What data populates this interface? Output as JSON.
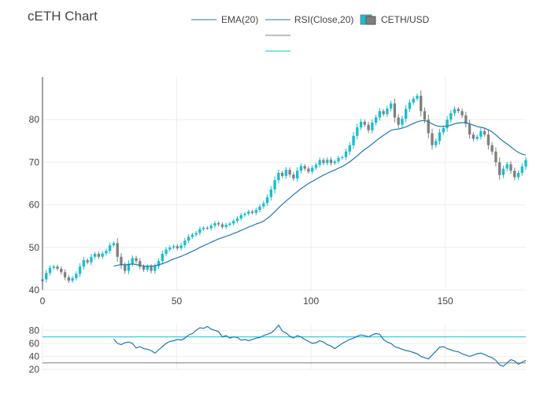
{
  "chart_data": {
    "title": "cETH Chart",
    "type": "candlestick",
    "legend_placement": "top-center",
    "colors": {
      "increasing": "#17becf",
      "decreasing": "#7f7f7f",
      "ema": "#1f77b4",
      "rsi": "#1f77b4",
      "rsi_upper": "#17becf",
      "rsi_lower": "#7f7f7f",
      "grid": "#eeeeee"
    },
    "legend": [
      "EMA(20)",
      "RSI(Close,20)",
      "CETH/USD"
    ],
    "price_axis": {
      "xlim": [
        0,
        180
      ],
      "ylim": [
        40,
        90
      ],
      "xticks": [
        0,
        50,
        100,
        150
      ],
      "yticks": [
        40,
        50,
        60,
        70,
        80
      ]
    },
    "rsi_axis": {
      "ylim": [
        20,
        90
      ],
      "yticks": [
        20,
        40,
        60,
        80
      ],
      "upper_band": 70,
      "lower_band": 30
    },
    "close": [
      42.5,
      44.0,
      45.2,
      45.5,
      45.0,
      44.2,
      43.0,
      42.2,
      42.8,
      43.8,
      45.5,
      47.0,
      46.5,
      47.8,
      48.5,
      47.8,
      48.6,
      49.2,
      50.5,
      51.0,
      47.8,
      45.8,
      44.5,
      46.2,
      47.5,
      46.8,
      45.5,
      44.8,
      45.5,
      44.5,
      45.6,
      46.8,
      48.5,
      49.5,
      50.0,
      50.3,
      49.8,
      50.5,
      51.6,
      52.5,
      53.0,
      53.4,
      54.3,
      54.6,
      54.5,
      55.1,
      55.7,
      55.4,
      54.8,
      55.3,
      55.6,
      56.2,
      56.8,
      57.6,
      57.9,
      58.4,
      58.1,
      58.8,
      59.6,
      60.4,
      61.8,
      63.6,
      65.8,
      67.5,
      66.8,
      68.2,
      67.1,
      66.2,
      68.0,
      69.1,
      68.5,
      67.8,
      68.7,
      69.4,
      70.5,
      69.8,
      70.6,
      69.8,
      70.2,
      71.0,
      71.2,
      72.5,
      74.0,
      76.2,
      78.2,
      79.5,
      78.8,
      77.5,
      79.3,
      80.5,
      82.0,
      81.3,
      82.6,
      83.8,
      80.5,
      78.8,
      80.2,
      82.5,
      84.0,
      84.9,
      85.6,
      82.0,
      80.0,
      76.8,
      74.0,
      75.0,
      77.0,
      78.0,
      80.0,
      81.5,
      82.5,
      82.0,
      81.0,
      79.0,
      76.5,
      75.5,
      76.0,
      77.3,
      76.5,
      74.0,
      72.5,
      70.0,
      67.0,
      68.5,
      69.5,
      68.0,
      66.5,
      67.5,
      69.0,
      70.5
    ],
    "ema": [
      null,
      null,
      null,
      null,
      null,
      null,
      null,
      null,
      null,
      null,
      null,
      null,
      null,
      null,
      null,
      null,
      null,
      null,
      null,
      45.6,
      45.8,
      46.0,
      45.9,
      46.0,
      46.1,
      46.0,
      45.8,
      45.6,
      45.6,
      45.6,
      45.7,
      45.9,
      46.2,
      46.5,
      46.9,
      47.3,
      47.6,
      47.9,
      48.3,
      48.7,
      49.1,
      49.5,
      50.0,
      50.4,
      50.8,
      51.2,
      51.6,
      52.0,
      52.3,
      52.6,
      52.9,
      53.3,
      53.6,
      54.0,
      54.4,
      54.8,
      55.1,
      55.5,
      55.8,
      56.2,
      56.8,
      57.5,
      58.4,
      59.3,
      60.1,
      60.9,
      61.6,
      62.4,
      63.1,
      63.8,
      64.4,
      65.0,
      65.5,
      66.0,
      66.5,
      67.0,
      67.4,
      67.8,
      68.2,
      68.6,
      69.0,
      69.5,
      70.1,
      70.8,
      71.5,
      72.3,
      73.0,
      73.6,
      74.3,
      75.0,
      75.7,
      76.3,
      76.9,
      77.5,
      77.7,
      77.8,
      78.0,
      78.3,
      78.7,
      79.1,
      79.5,
      79.7,
      79.8,
      79.5,
      79.0,
      78.6,
      78.4,
      78.4,
      78.5,
      78.7,
      79.0,
      79.2,
      79.3,
      79.3,
      79.0,
      78.7,
      78.4,
      78.2,
      78.0,
      77.6,
      77.1,
      76.4,
      75.6,
      74.9,
      74.3,
      73.6,
      72.9,
      72.3,
      71.9,
      71.7
    ],
    "rsi": [
      null,
      null,
      null,
      null,
      null,
      null,
      null,
      null,
      null,
      null,
      null,
      null,
      null,
      null,
      null,
      null,
      null,
      null,
      null,
      67,
      60,
      58,
      61,
      62,
      60,
      53,
      55,
      52,
      51,
      49,
      45,
      50,
      55,
      60,
      63,
      64,
      66,
      65,
      68,
      73,
      75,
      80,
      84,
      83,
      86,
      82,
      80,
      78,
      70,
      72,
      68,
      70,
      69,
      65,
      66,
      64,
      66,
      68,
      69,
      72,
      74,
      76,
      81,
      88,
      79,
      76,
      71,
      68,
      72,
      70,
      66,
      63,
      60,
      61,
      64,
      62,
      58,
      56,
      52,
      56,
      60,
      63,
      66,
      68,
      71,
      73,
      72,
      70,
      73,
      75,
      74,
      66,
      62,
      60,
      55,
      53,
      51,
      49,
      48,
      46,
      44,
      40,
      38,
      36,
      42,
      48,
      54,
      55,
      52,
      50,
      48,
      47,
      44,
      42,
      40,
      42,
      44,
      45,
      43,
      40,
      38,
      34,
      27,
      25,
      30,
      35,
      33,
      28,
      31,
      34
    ]
  }
}
